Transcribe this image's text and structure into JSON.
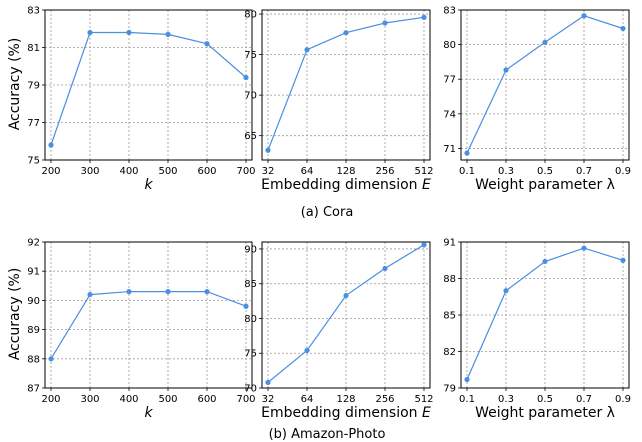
{
  "captions": [
    "(a) Cora",
    "(b) Amazon-Photo"
  ],
  "ylabels": [
    "Accuracy (%)",
    "Accuracy (%)"
  ],
  "line_color": "#4a8fe0",
  "chart_data": [
    {
      "type": "line",
      "dataset": "Cora",
      "xlabel": "k",
      "x": [
        "200",
        "300",
        "400",
        "500",
        "600",
        "700"
      ],
      "values": [
        75.8,
        81.8,
        81.8,
        81.7,
        81.2,
        79.4
      ],
      "ylim": [
        75,
        83
      ],
      "yticks": [
        "75",
        "77",
        "79",
        "81",
        "83"
      ],
      "grid": true
    },
    {
      "type": "line",
      "dataset": "Cora",
      "xlabel": "Embedding dimension E",
      "x": [
        "32",
        "64",
        "128",
        "256",
        "512"
      ],
      "values": [
        63.2,
        75.6,
        77.7,
        78.9,
        79.6
      ],
      "ylim": [
        62,
        80.5
      ],
      "yticks": [
        "65",
        "70",
        "75",
        "80"
      ],
      "grid": true
    },
    {
      "type": "line",
      "dataset": "Cora",
      "xlabel": "Weight parameter λ",
      "x": [
        "0.1",
        "0.3",
        "0.5",
        "0.7",
        "0.9"
      ],
      "values": [
        70.6,
        77.8,
        80.2,
        82.5,
        81.4
      ],
      "ylim": [
        70,
        83
      ],
      "yticks": [
        "71",
        "74",
        "77",
        "80",
        "83"
      ],
      "grid": true
    },
    {
      "type": "line",
      "dataset": "Amazon-Photo",
      "xlabel": "k",
      "x": [
        "200",
        "300",
        "400",
        "500",
        "600",
        "700"
      ],
      "values": [
        88.0,
        90.2,
        90.3,
        90.3,
        90.3,
        89.8
      ],
      "ylim": [
        87,
        92
      ],
      "yticks": [
        "87",
        "88",
        "89",
        "90",
        "91",
        "92"
      ],
      "grid": true
    },
    {
      "type": "line",
      "dataset": "Amazon-Photo",
      "xlabel": "Embedding dimension E",
      "x": [
        "32",
        "64",
        "128",
        "256",
        "512"
      ],
      "values": [
        70.8,
        75.4,
        83.3,
        87.2,
        90.6
      ],
      "ylim": [
        70,
        91
      ],
      "yticks": [
        "70",
        "75",
        "80",
        "85",
        "90"
      ],
      "grid": true
    },
    {
      "type": "line",
      "dataset": "Amazon-Photo",
      "xlabel": "Weight parameter λ",
      "x": [
        "0.1",
        "0.3",
        "0.5",
        "0.7",
        "0.9"
      ],
      "values": [
        79.7,
        87.0,
        89.4,
        90.5,
        89.5
      ],
      "ylim": [
        79,
        91
      ],
      "yticks": [
        "79",
        "82",
        "85",
        "88",
        "91"
      ],
      "grid": true
    }
  ]
}
